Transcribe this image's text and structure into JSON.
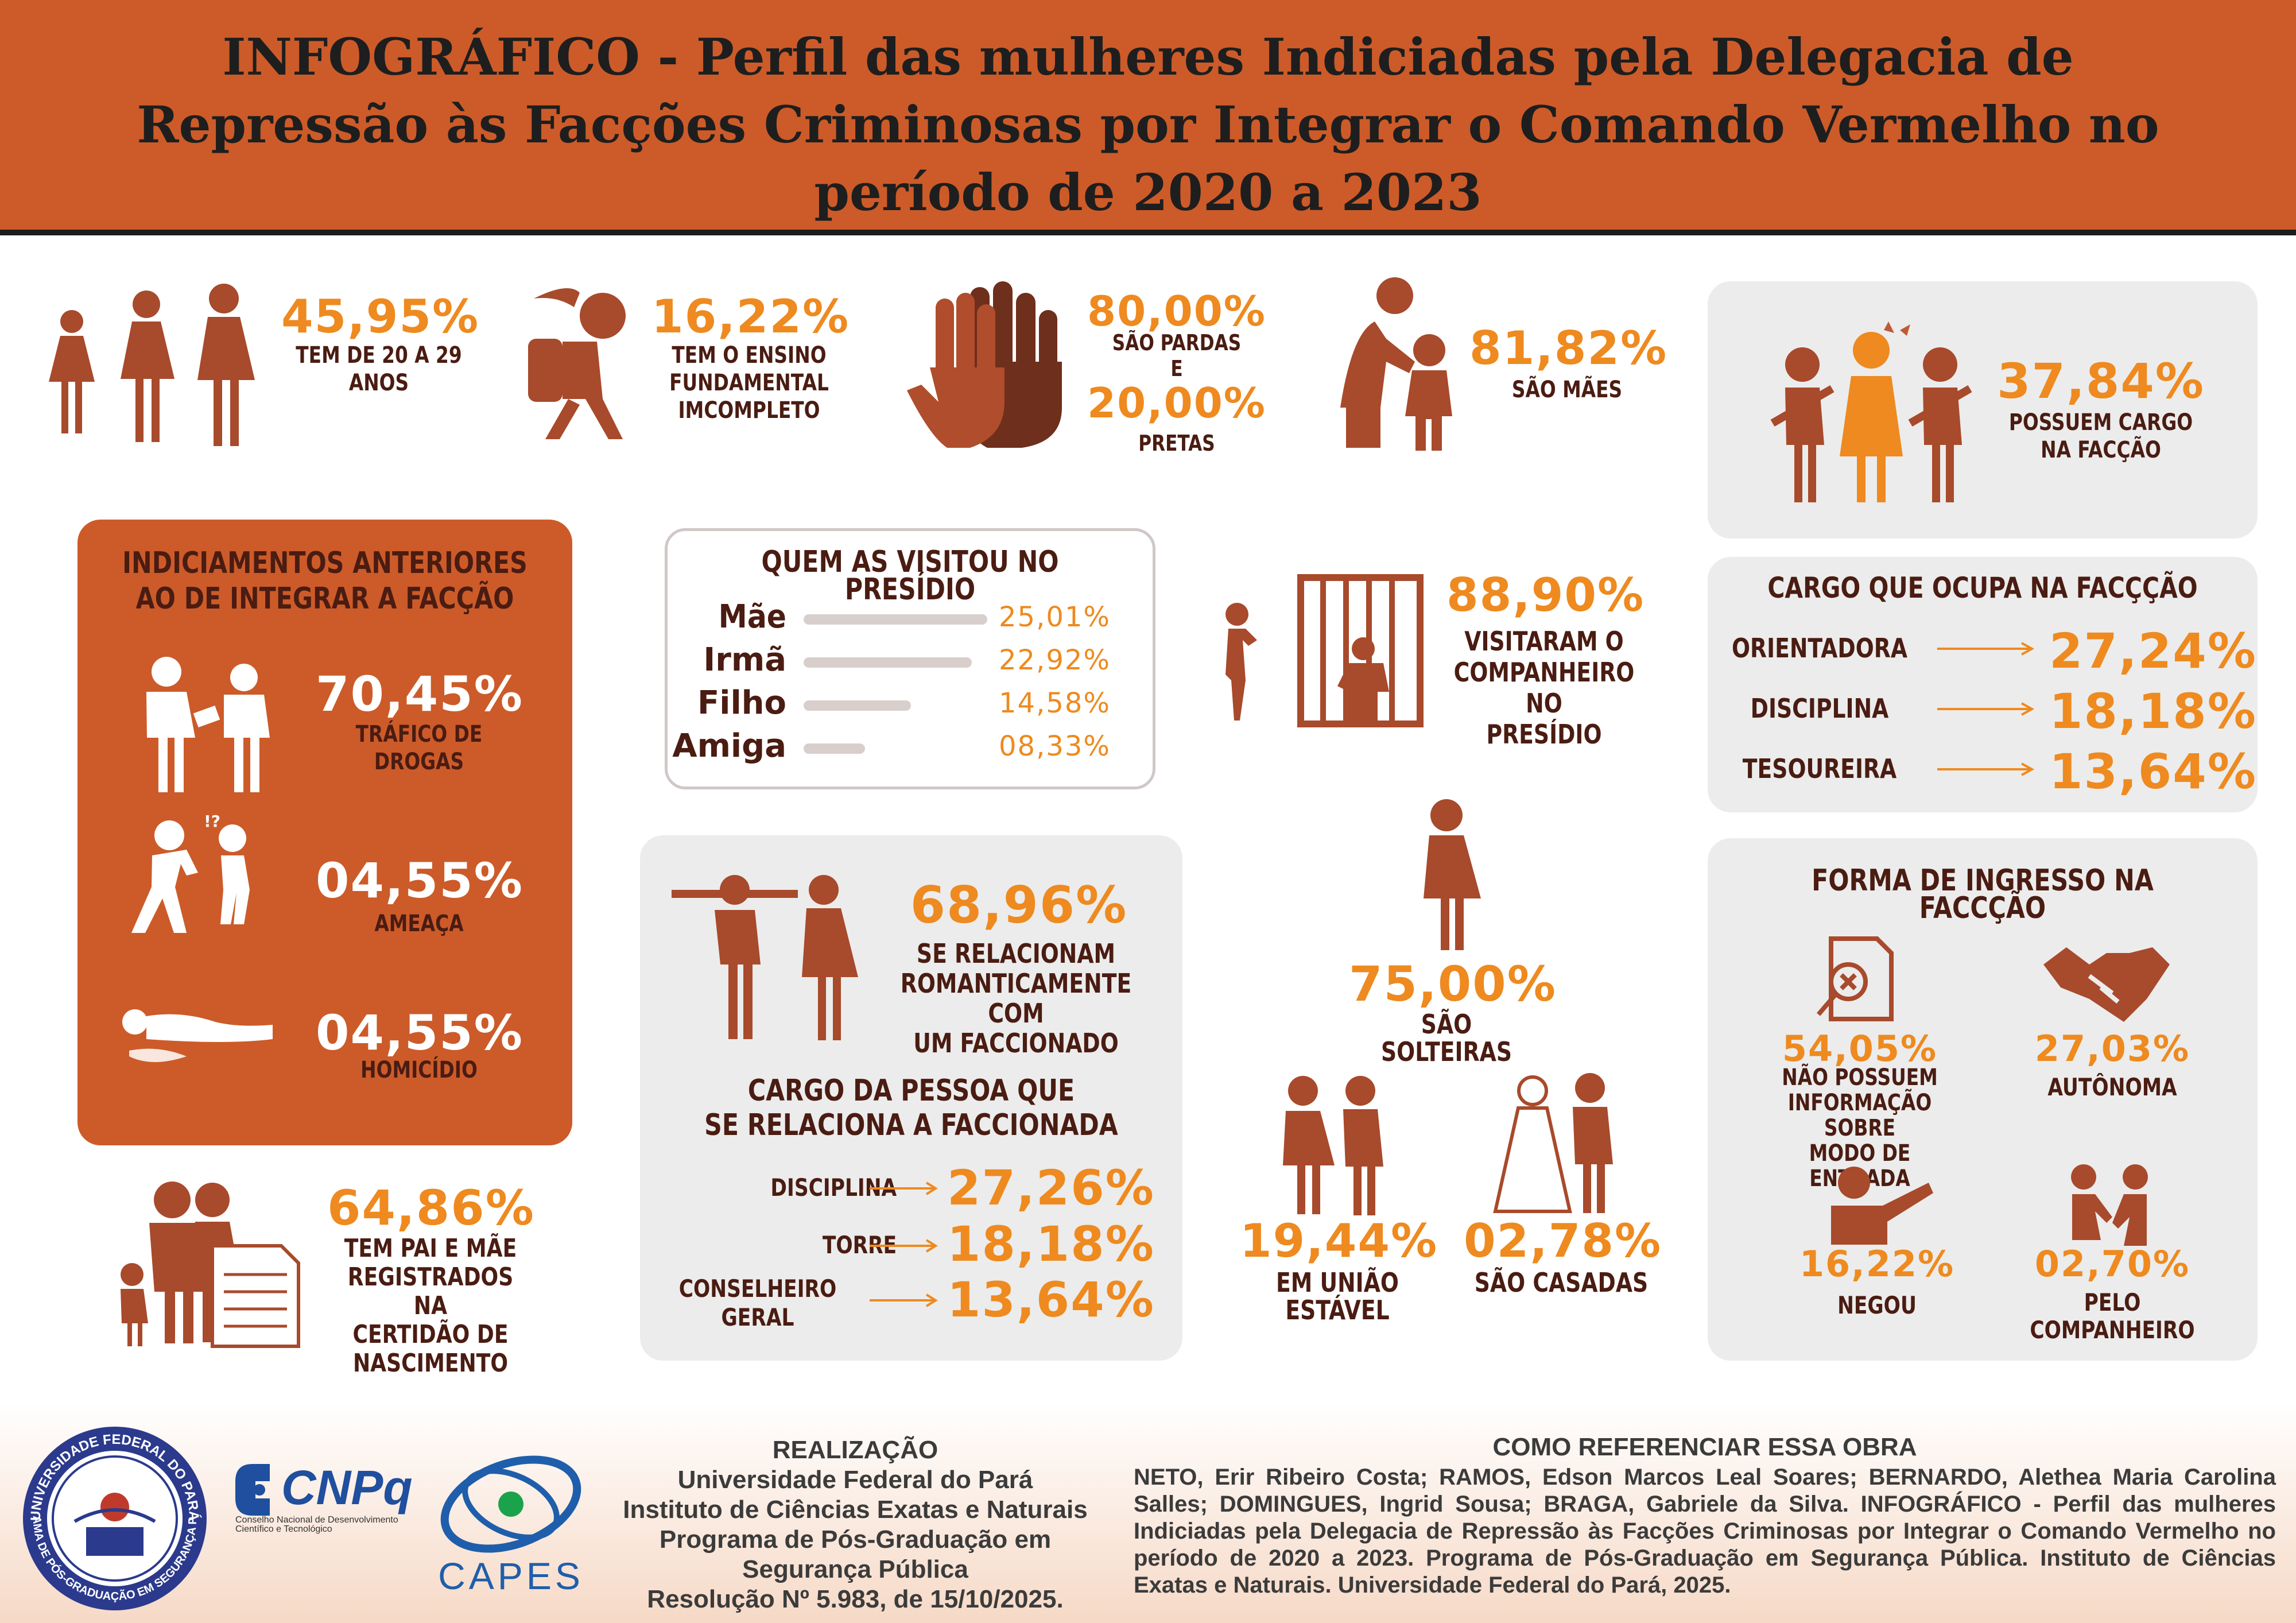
{
  "title_lines": [
    "INFOGRÁFICO - Perfil das mulheres Indiciadas pela Delegacia de",
    "Repressão às Facções Criminosas por Integrar o Comando Vermelho no",
    "período de 2020 a 2023"
  ],
  "stats_top": {
    "age": {
      "pct": "45,95%",
      "label_1": "TEM DE 20 A 29",
      "label_2": "ANOS"
    },
    "education": {
      "pct": "16,22%",
      "label_1": "TEM O ENSINO",
      "label_2": "FUNDAMENTAL",
      "label_3": "IMCOMPLETO"
    },
    "race": {
      "pct_1": "80,00%",
      "label_1": "SÃO PARDAS",
      "conj": "E",
      "pct_2": "20,00%",
      "label_2": "PRETAS"
    },
    "mothers": {
      "pct": "81,82%",
      "label": "SÃO MÃES"
    },
    "role": {
      "pct": "37,84%",
      "label_1": "POSSUEM CARGO",
      "label_2": "NA FACÇÃO"
    }
  },
  "indictments": {
    "title_1": "INDICIAMENTOS ANTERIORES",
    "title_2": "AO DE INTEGRAR A FACÇÃO",
    "items": [
      {
        "pct": "70,45%",
        "label_1": "TRÁFICO DE",
        "label_2": "DROGAS"
      },
      {
        "pct": "04,55%",
        "label_1": "AMEAÇA",
        "label_2": ""
      },
      {
        "pct": "04,55%",
        "label_1": "HOMICÍDIO",
        "label_2": ""
      }
    ]
  },
  "visits": {
    "title": "QUEM AS VISITOU NO PRESÍDIO",
    "rows": [
      {
        "label": "Mãe",
        "value": "25,01%",
        "num": 25.01
      },
      {
        "label": "Irmã",
        "value": "22,92%",
        "num": 22.92
      },
      {
        "label": "Filho",
        "value": "14,58%",
        "num": 14.58
      },
      {
        "label": "Amiga",
        "value": "08,33%",
        "num": 8.33
      }
    ]
  },
  "partner_visit": {
    "pct": "88,90%",
    "label_1": "VISITARAM O",
    "label_2": "COMPANHEIRO NO",
    "label_3": "PRESÍDIO"
  },
  "cargo": {
    "title": "CARGO QUE OCUPA NA FACÇÇÃO",
    "rows": [
      {
        "label": "ORIENTADORA",
        "pct": "27,24%"
      },
      {
        "label": "DISCIPLINA",
        "pct": "18,18%"
      },
      {
        "label": "TESOUREIRA",
        "pct": "13,64%"
      }
    ]
  },
  "relationship": {
    "pct": "68,96%",
    "label_1": "SE RELACIONAM",
    "label_2": "ROMANTICAMENTE COM",
    "label_3": "UM FACCIONADO",
    "sub_title_1": "CARGO DA PESSOA QUE",
    "sub_title_2": "SE RELACIONA A FACCIONADA",
    "rows": [
      {
        "label_1": "DISCIPLINA",
        "label_2": "",
        "pct": "27,26%"
      },
      {
        "label_1": "TORRE",
        "label_2": "",
        "pct": "18,18%"
      },
      {
        "label_1": "CONSELHEIRO",
        "label_2": "GERAL",
        "pct": "13,64%"
      }
    ]
  },
  "marital": {
    "single": {
      "pct": "75,00%",
      "label": "SÃO SOLTEIRAS"
    },
    "stable": {
      "pct": "19,44%",
      "label": "EM UNIÃO ESTÁVEL"
    },
    "married": {
      "pct": "02,78%",
      "label": "SÃO CASADAS"
    }
  },
  "parents": {
    "pct": "64,86%",
    "label_1": "TEM PAI E MÃE",
    "label_2": "REGISTRADOS NA",
    "label_3": "CERTIDÃO DE",
    "label_4": "NASCIMENTO"
  },
  "ingress": {
    "title": "FORMA DE INGRESSO NA FACCÇÃO",
    "items": [
      {
        "pct": "54,05%",
        "label_1": "NÃO POSSUEM",
        "label_2": "INFORMAÇÃO SOBRE",
        "label_3": "MODO DE ENTRADA"
      },
      {
        "pct": "27,03%",
        "label_1": "AUTÔNOMA",
        "label_2": "",
        "label_3": ""
      },
      {
        "pct": "16,22%",
        "label_1": "NEGOU",
        "label_2": "",
        "label_3": ""
      },
      {
        "pct": "02,70%",
        "label_1": "PELO",
        "label_2": "COMPANHEIRO",
        "label_3": ""
      }
    ]
  },
  "footer": {
    "seal_text_top": "UNIVERSIDADE FEDERAL DO PARÁ",
    "seal_text_bottom": "PROGRAMA DE PÓS-GRADUAÇÃO EM SEGURANÇA PÚBLICA",
    "cnpq": "CNPq",
    "cnpq_sub_1": "Conselho Nacional de Desenvolvimento",
    "cnpq_sub_2": "Científico e Tecnológico",
    "capes": "CAPES",
    "realizacao_title": "REALIZAÇÃO",
    "realizacao_1": "Universidade Federal do Pará",
    "realizacao_2": "Instituto de Ciências Exatas e Naturais",
    "realizacao_3": "Programa de Pós-Graduação em",
    "realizacao_4": "Segurança Pública",
    "realizacao_5": "Resolução Nº 5.983, de 15/10/2025.",
    "ref_title": "COMO REFERENCIAR ESSA OBRA",
    "ref_text": "NETO, Erir Ribeiro Costa; RAMOS, Edson Marcos Leal Soares; BERNARDO, Alethea Maria Carolina Salles; DOMINGUES, Ingrid Sousa; BRAGA, Gabriele da Silva. INFOGRÁFICO - Perfil das mulheres Indiciadas pela Delegacia de Repressão às Facções Criminosas por Integrar o Comando Vermelho no período de 2020 a 2023. Programa de Pós-Graduação em Segurança Pública. Instituto de Ciências Exatas e Naturais. Universidade Federal do Pará, 2025."
  },
  "colors": {
    "brand": "#cc5b29",
    "accent": "#ee8a1f",
    "figure": "#a84a2c",
    "text": "#4a1c12",
    "panel": "#ececec"
  }
}
